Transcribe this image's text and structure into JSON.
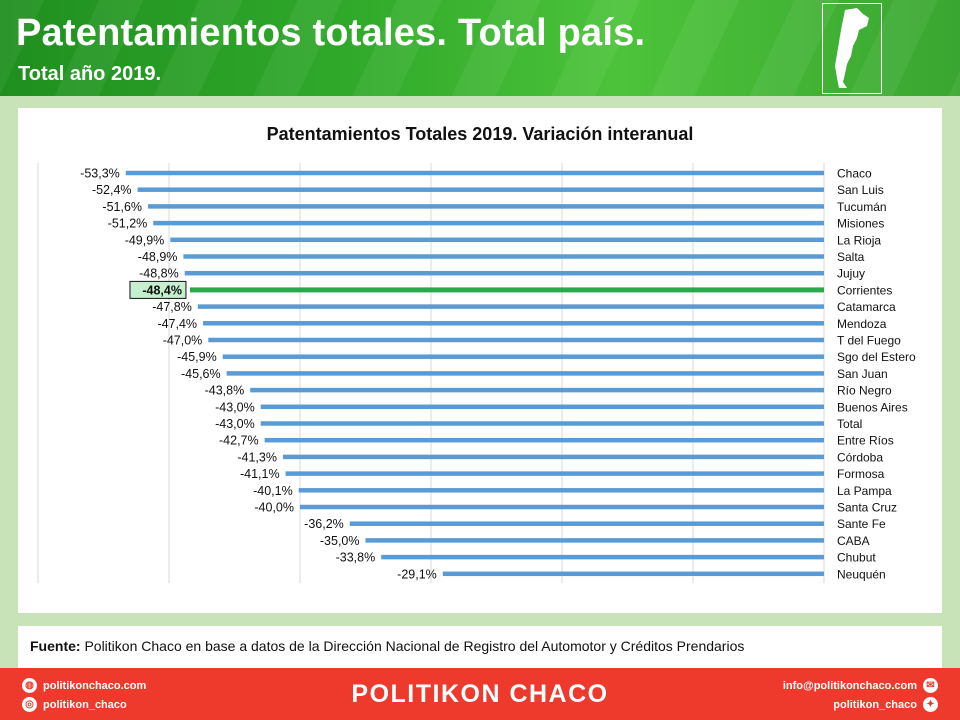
{
  "header": {
    "title": "Patentamientos totales. Total país.",
    "subtitle": "Total año 2019."
  },
  "chart_data": {
    "type": "bar",
    "orientation": "horizontal",
    "title": "Patentamientos Totales 2019. Variación interanual",
    "categories": [
      "Chaco",
      "San Luis",
      "Tucumán",
      "Misiones",
      "La Rioja",
      "Salta",
      "Jujuy",
      "Corrientes",
      "Catamarca",
      "Mendoza",
      "T del Fuego",
      "Sgo del Estero",
      "San Juan",
      "Río Negro",
      "Buenos Aires",
      "Total",
      "Entre Ríos",
      "Córdoba",
      "Formosa",
      "La Pampa",
      "Santa Cruz",
      "Sante Fe",
      "CABA",
      "Chubut",
      "Neuquén"
    ],
    "values": [
      -53.3,
      -52.4,
      -51.6,
      -51.2,
      -49.9,
      -48.9,
      -48.8,
      -48.4,
      -47.8,
      -47.4,
      -47.0,
      -45.9,
      -45.6,
      -43.8,
      -43.0,
      -43.0,
      -42.7,
      -41.3,
      -41.1,
      -40.1,
      -40.0,
      -36.2,
      -35.0,
      -33.8,
      -29.1
    ],
    "value_labels": [
      "-53,3%",
      "-52,4%",
      "-51,6%",
      "-51,2%",
      "-49,9%",
      "-48,9%",
      "-48,8%",
      "-48,4%",
      "-47,8%",
      "-47,4%",
      "-47,0%",
      "-45,9%",
      "-45,6%",
      "-43,8%",
      "-43,0%",
      "-43,0%",
      "-42,7%",
      "-41,3%",
      "-41,1%",
      "-40,1%",
      "-40,0%",
      "-36,2%",
      "-35,0%",
      "-33,8%",
      "-29,1%"
    ],
    "highlight": "Corrientes",
    "xlim": [
      -60,
      0
    ],
    "grid": true,
    "colors": {
      "bar": "#5b9bd5",
      "highlight": "#2aa84a",
      "highlight_label_bg": "#c6efce"
    }
  },
  "source": {
    "label": "Fuente:",
    "text": " Politikon Chaco en base a datos de la Dirección Nacional de Registro del Automotor y Créditos Prendarios"
  },
  "footer": {
    "brand": "POLITIKON CHACO",
    "website": "politikonchaco.com",
    "instagram": "politikon_chaco",
    "email": "info@politikonchaco.com",
    "twitter": "politikon_chaco",
    "website_icon": "globe-icon",
    "instagram_icon": "instagram-icon",
    "email_icon": "mail-icon",
    "twitter_icon": "twitter-icon"
  }
}
